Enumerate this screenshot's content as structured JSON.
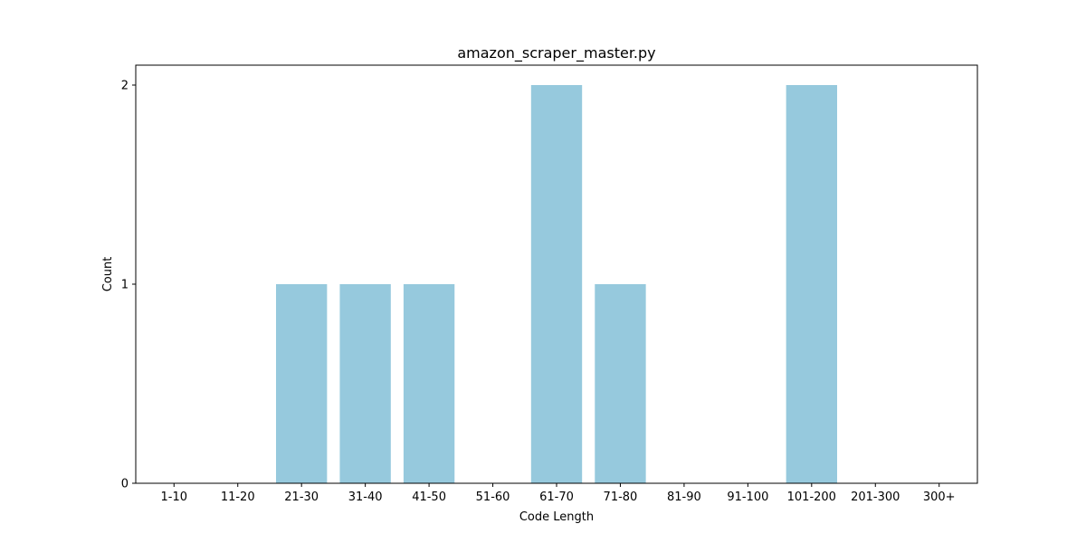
{
  "chart_data": {
    "type": "bar",
    "title": "amazon_scraper_master.py",
    "xlabel": "Code Length",
    "ylabel": "Count",
    "categories": [
      "1-10",
      "11-20",
      "21-30",
      "31-40",
      "41-50",
      "51-60",
      "61-70",
      "71-80",
      "81-90",
      "91-100",
      "101-200",
      "201-300",
      "300+"
    ],
    "values": [
      0,
      0,
      1,
      1,
      1,
      0,
      2,
      1,
      0,
      0,
      2,
      0,
      0
    ],
    "ylim": [
      0,
      2.1
    ],
    "yticks": [
      0,
      1,
      2
    ],
    "grid": false,
    "legend": "none",
    "bar_color": "#96c9dd"
  }
}
